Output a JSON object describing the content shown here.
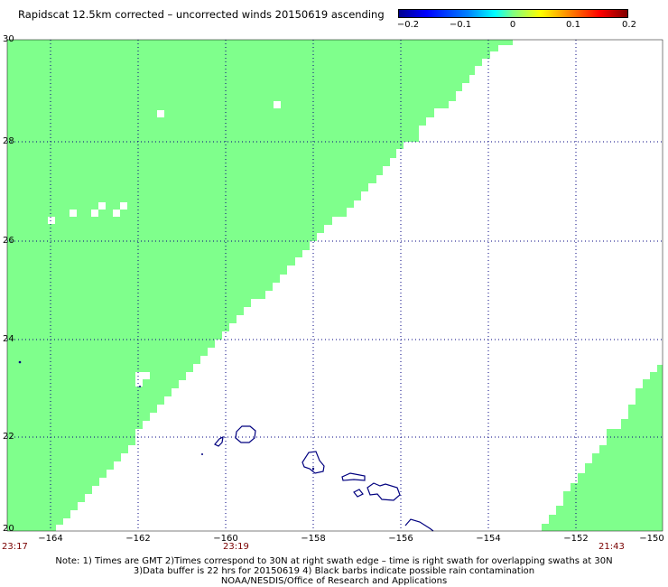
{
  "title": "Rapidscat 12.5km corrected – uncorrected winds 20150619 ascending",
  "colorbar": {
    "ticks": [
      "−0.2",
      "−0.1",
      "0",
      "0.1",
      "0.2"
    ]
  },
  "axes": {
    "lat_ticks": [
      "30",
      "28",
      "26",
      "24",
      "22",
      "20"
    ],
    "lon_ticks": [
      "−164",
      "−162",
      "−160",
      "−158",
      "−156",
      "−154",
      "−152",
      "−150"
    ],
    "lat_range": [
      20,
      30
    ],
    "lon_range": [
      -165,
      -150
    ]
  },
  "times": [
    "23:17",
    "23:19",
    "21:43"
  ],
  "notes": [
    "Note: 1) Times are GMT 2)Times correspond to 30N at right swath edge – time is right swath for overlapping swaths at 30N",
    "3)Data buffer is 22 hrs for 20150619 4) Black barbs indicate possible rain contamination",
    "NOAA/NESDIS/Office of Research and Applications"
  ],
  "colors": {
    "swath": "#7fff8c",
    "coast": "#00007f",
    "grid": "#000080"
  }
}
